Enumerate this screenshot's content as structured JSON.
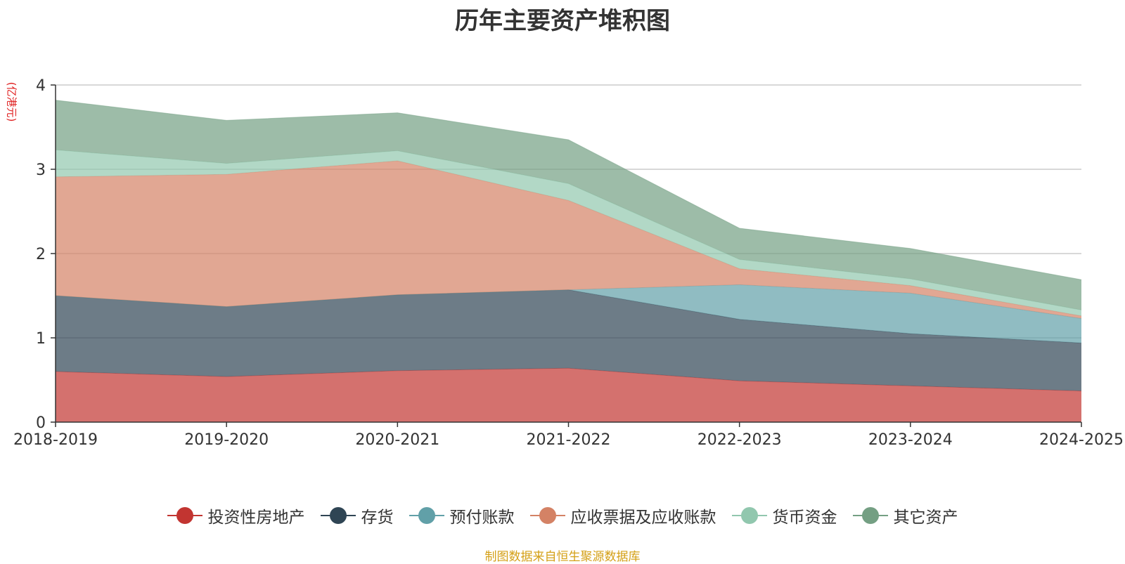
{
  "chart_data": {
    "type": "area",
    "stacked": true,
    "title": "历年主要资产堆积图",
    "ylabel": "(亿港元)",
    "ylim": [
      0,
      4
    ],
    "yticks": [
      0,
      1,
      2,
      3,
      4
    ],
    "grid": true,
    "legend_position": "bottom",
    "categories": [
      "2018-2019",
      "2019-2020",
      "2020-2021",
      "2021-2022",
      "2022-2023",
      "2023-2024",
      "2024-2025"
    ],
    "series": [
      {
        "name": "投资性房地产",
        "color": "#c23531",
        "values": [
          0.6,
          0.54,
          0.61,
          0.64,
          0.49,
          0.43,
          0.37
        ]
      },
      {
        "name": "存货",
        "color": "#2f4554",
        "values": [
          0.9,
          0.83,
          0.9,
          0.93,
          0.73,
          0.62,
          0.57
        ]
      },
      {
        "name": "预付账款",
        "color": "#61a0a8",
        "values": [
          0.0,
          0.0,
          0.0,
          0.0,
          0.41,
          0.48,
          0.29
        ]
      },
      {
        "name": "应收票据及应收账款",
        "color": "#d48265",
        "values": [
          1.41,
          1.57,
          1.59,
          1.06,
          0.19,
          0.09,
          0.03
        ]
      },
      {
        "name": "货币资金",
        "color": "#91c7ae",
        "values": [
          0.32,
          0.13,
          0.12,
          0.2,
          0.11,
          0.08,
          0.07
        ]
      },
      {
        "name": "其它资产",
        "color": "#749f83",
        "values": [
          0.59,
          0.51,
          0.45,
          0.52,
          0.37,
          0.36,
          0.36
        ]
      }
    ]
  },
  "colors": {
    "unit_color": "#e02020",
    "source_color": "#d4a017",
    "axis_color": "#333333",
    "grid_color": "#cccccc"
  },
  "source": "制图数据来自恒生聚源数据库"
}
